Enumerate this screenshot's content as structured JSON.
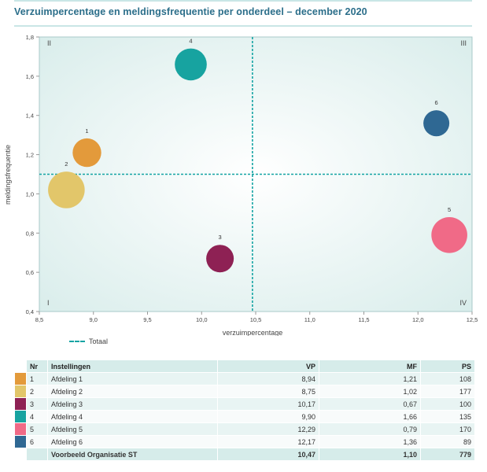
{
  "title": "Verzuimpercentage en meldingsfrequentie per onderdeel – december 2020",
  "chart_data": {
    "type": "scatter",
    "title": "Verzuimpercentage en meldingsfrequentie per onderdeel – december 2020",
    "xlabel": "verzuimpercentage",
    "ylabel": "meldingsfrequentie",
    "xlim": [
      8.5,
      12.5
    ],
    "ylim": [
      0.4,
      1.8
    ],
    "xticks": [
      "8,5",
      "9,0",
      "9,5",
      "10,0",
      "10,5",
      "11,0",
      "11,5",
      "12,0",
      "12,5"
    ],
    "xtick_values": [
      8.5,
      9.0,
      9.5,
      10.0,
      10.5,
      11.0,
      11.5,
      12.0,
      12.5
    ],
    "yticks": [
      "0,4",
      "0,6",
      "0,8",
      "1,0",
      "1,2",
      "1,4",
      "1,6",
      "1,8"
    ],
    "ytick_values": [
      0.4,
      0.6,
      0.8,
      1.0,
      1.2,
      1.4,
      1.6,
      1.8
    ],
    "reference_x": 10.47,
    "reference_y": 1.1,
    "quadrants": {
      "top_left": "II",
      "top_right": "III",
      "bottom_left": "I",
      "bottom_right": "IV"
    },
    "legend_label": "Totaal",
    "points": [
      {
        "label": "1",
        "x": 8.94,
        "y": 1.21,
        "size": 108,
        "color": "#e39a3b"
      },
      {
        "label": "2",
        "x": 8.75,
        "y": 1.02,
        "size": 177,
        "color": "#e2c66a"
      },
      {
        "label": "3",
        "x": 10.17,
        "y": 0.67,
        "size": 100,
        "color": "#8e2154"
      },
      {
        "label": "4",
        "x": 9.9,
        "y": 1.66,
        "size": 135,
        "color": "#17a3a0"
      },
      {
        "label": "5",
        "x": 12.29,
        "y": 0.79,
        "size": 170,
        "color": "#f06a87"
      },
      {
        "label": "6",
        "x": 12.17,
        "y": 1.36,
        "size": 89,
        "color": "#2f6893"
      }
    ]
  },
  "table": {
    "headers": {
      "nr": "Nr",
      "name": "Instellingen",
      "vp": "VP",
      "mf": "MF",
      "ps": "PS"
    },
    "rows": [
      {
        "nr": "1",
        "name": "Afdeling 1",
        "vp": "8,94",
        "mf": "1,21",
        "ps": "108",
        "color": "#e39a3b"
      },
      {
        "nr": "2",
        "name": "Afdeling 2",
        "vp": "8,75",
        "mf": "1,02",
        "ps": "177",
        "color": "#e2c66a"
      },
      {
        "nr": "3",
        "name": "Afdeling 3",
        "vp": "10,17",
        "mf": "0,67",
        "ps": "100",
        "color": "#8e2154"
      },
      {
        "nr": "4",
        "name": "Afdeling 4",
        "vp": "9,90",
        "mf": "1,66",
        "ps": "135",
        "color": "#17a3a0"
      },
      {
        "nr": "5",
        "name": "Afdeling 5",
        "vp": "12,29",
        "mf": "0,79",
        "ps": "170",
        "color": "#f06a87"
      },
      {
        "nr": "6",
        "name": "Afdeling 6",
        "vp": "12,17",
        "mf": "1,36",
        "ps": "89",
        "color": "#2f6893"
      }
    ],
    "total": {
      "name": "Voorbeeld Organisatie ST",
      "vp": "10,47",
      "mf": "1,10",
      "ps": "779"
    }
  }
}
